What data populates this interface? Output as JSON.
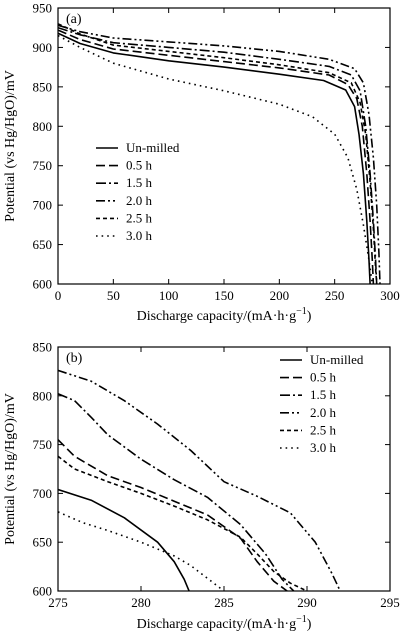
{
  "chart_data": [
    {
      "type": "line",
      "panel_label": "(a)",
      "xlabel": "Discharge capacity/(mA·h·g",
      "xlabel_sup": "−1",
      "xlabel_end": ")",
      "ylabel": "Potential (vs Hg/HgO)/mV",
      "xlim": [
        0,
        300
      ],
      "ylim": [
        600,
        950
      ],
      "xticks": [
        0,
        50,
        100,
        150,
        200,
        250,
        300
      ],
      "yticks": [
        600,
        650,
        700,
        750,
        800,
        850,
        900,
        950
      ],
      "legend_position": "lower-left",
      "series": [
        {
          "name": "Un-milled",
          "style": "solid",
          "points": [
            [
              0,
              918
            ],
            [
              20,
              905
            ],
            [
              50,
              893
            ],
            [
              100,
              883
            ],
            [
              150,
              875
            ],
            [
              200,
              866
            ],
            [
              240,
              858
            ],
            [
              260,
              846
            ],
            [
              268,
              825
            ],
            [
              272,
              790
            ],
            [
              276,
              740
            ],
            [
              279,
              680
            ],
            [
              281,
              630
            ],
            [
              282,
              600
            ]
          ]
        },
        {
          "name": "0.5 h",
          "style": "dash",
          "points": [
            [
              0,
              922
            ],
            [
              20,
              910
            ],
            [
              50,
              898
            ],
            [
              100,
              890
            ],
            [
              150,
              882
            ],
            [
              200,
              874
            ],
            [
              245,
              865
            ],
            [
              262,
              853
            ],
            [
              270,
              835
            ],
            [
              275,
              800
            ],
            [
              279,
              740
            ],
            [
              282,
              680
            ],
            [
              284,
              630
            ],
            [
              285,
              600
            ]
          ]
        },
        {
          "name": "1.5 h",
          "style": "dashdot",
          "points": [
            [
              0,
              925
            ],
            [
              20,
              916
            ],
            [
              50,
              906
            ],
            [
              100,
              900
            ],
            [
              150,
              894
            ],
            [
              200,
              885
            ],
            [
              245,
              876
            ],
            [
              265,
              865
            ],
            [
              273,
              845
            ],
            [
              278,
              800
            ],
            [
              282,
              740
            ],
            [
              285,
              680
            ],
            [
              287,
              630
            ],
            [
              288,
              600
            ]
          ]
        },
        {
          "name": "2.0 h",
          "style": "dashdotdot",
          "points": [
            [
              0,
              928
            ],
            [
              20,
              920
            ],
            [
              50,
              912
            ],
            [
              100,
              907
            ],
            [
              150,
              902
            ],
            [
              200,
              895
            ],
            [
              245,
              885
            ],
            [
              268,
              873
            ],
            [
              276,
              855
            ],
            [
              281,
              815
            ],
            [
              285,
              760
            ],
            [
              288,
              700
            ],
            [
              290,
              640
            ],
            [
              291,
              600
            ]
          ]
        },
        {
          "name": "2.5 h",
          "style": "shortdash",
          "points": [
            [
              0,
              930
            ],
            [
              20,
              917
            ],
            [
              50,
              903
            ],
            [
              100,
              895
            ],
            [
              150,
              887
            ],
            [
              200,
              878
            ],
            [
              245,
              868
            ],
            [
              265,
              855
            ],
            [
              273,
              830
            ],
            [
              278,
              790
            ],
            [
              282,
              730
            ],
            [
              285,
              670
            ],
            [
              287,
              620
            ],
            [
              288,
              600
            ]
          ]
        },
        {
          "name": "3.0 h",
          "style": "dotted",
          "points": [
            [
              0,
              915
            ],
            [
              20,
              900
            ],
            [
              50,
              880
            ],
            [
              100,
              860
            ],
            [
              150,
              845
            ],
            [
              200,
              828
            ],
            [
              230,
              812
            ],
            [
              250,
              790
            ],
            [
              262,
              760
            ],
            [
              270,
              720
            ],
            [
              276,
              675
            ],
            [
              281,
              630
            ],
            [
              284,
              600
            ]
          ]
        }
      ]
    },
    {
      "type": "line",
      "panel_label": "(b)",
      "xlabel": "Discharge capacity/(mA·h·g",
      "xlabel_sup": "−1",
      "xlabel_end": ")",
      "ylabel": "Potential (vs Hg/HgO)/mV",
      "xlim": [
        275,
        295
      ],
      "ylim": [
        600,
        850
      ],
      "xticks": [
        275,
        280,
        285,
        290,
        295
      ],
      "yticks": [
        600,
        650,
        700,
        750,
        800,
        850
      ],
      "legend_position": "top-right",
      "series": [
        {
          "name": "Un-milled",
          "style": "solid",
          "points": [
            [
              275,
              704
            ],
            [
              277,
              693
            ],
            [
              279,
              675
            ],
            [
              281,
              650
            ],
            [
              282,
              630
            ],
            [
              282.6,
              612
            ],
            [
              282.9,
              600
            ]
          ]
        },
        {
          "name": "0.5 h",
          "style": "dash",
          "points": [
            [
              275,
              755
            ],
            [
              276,
              738
            ],
            [
              278,
              718
            ],
            [
              280,
              706
            ],
            [
              282,
              692
            ],
            [
              284,
              678
            ],
            [
              286,
              654
            ],
            [
              287,
              630
            ],
            [
              288,
              610
            ],
            [
              288.8,
              600
            ]
          ]
        },
        {
          "name": "1.5 h",
          "style": "dashdot",
          "points": [
            [
              275,
              802
            ],
            [
              276,
              795
            ],
            [
              277,
              778
            ],
            [
              278,
              760
            ],
            [
              280,
              735
            ],
            [
              282,
              714
            ],
            [
              284,
              696
            ],
            [
              286,
              668
            ],
            [
              287.5,
              638
            ],
            [
              288.5,
              612
            ],
            [
              289.2,
              600
            ]
          ]
        },
        {
          "name": "2.0 h",
          "style": "dashdotdot",
          "points": [
            [
              275,
              826
            ],
            [
              277,
              815
            ],
            [
              279,
              795
            ],
            [
              281,
              771
            ],
            [
              283,
              744
            ],
            [
              285,
              712
            ],
            [
              287,
              697
            ],
            [
              289,
              680
            ],
            [
              290.5,
              650
            ],
            [
              291.5,
              618
            ],
            [
              292,
              600
            ]
          ]
        },
        {
          "name": "2.5 h",
          "style": "shortdash",
          "points": [
            [
              275,
              738
            ],
            [
              276,
              725
            ],
            [
              278,
              712
            ],
            [
              280,
              700
            ],
            [
              282,
              687
            ],
            [
              284,
              673
            ],
            [
              286,
              655
            ],
            [
              287,
              638
            ],
            [
              288,
              620
            ],
            [
              289,
              608
            ],
            [
              290,
              600
            ]
          ]
        },
        {
          "name": "3.0 h",
          "style": "dotted",
          "points": [
            [
              275,
              681
            ],
            [
              276.5,
              670
            ],
            [
              278,
              662
            ],
            [
              280,
              650
            ],
            [
              282,
              636
            ],
            [
              283,
              626
            ],
            [
              284,
              613
            ],
            [
              285,
              600
            ]
          ]
        }
      ]
    }
  ]
}
